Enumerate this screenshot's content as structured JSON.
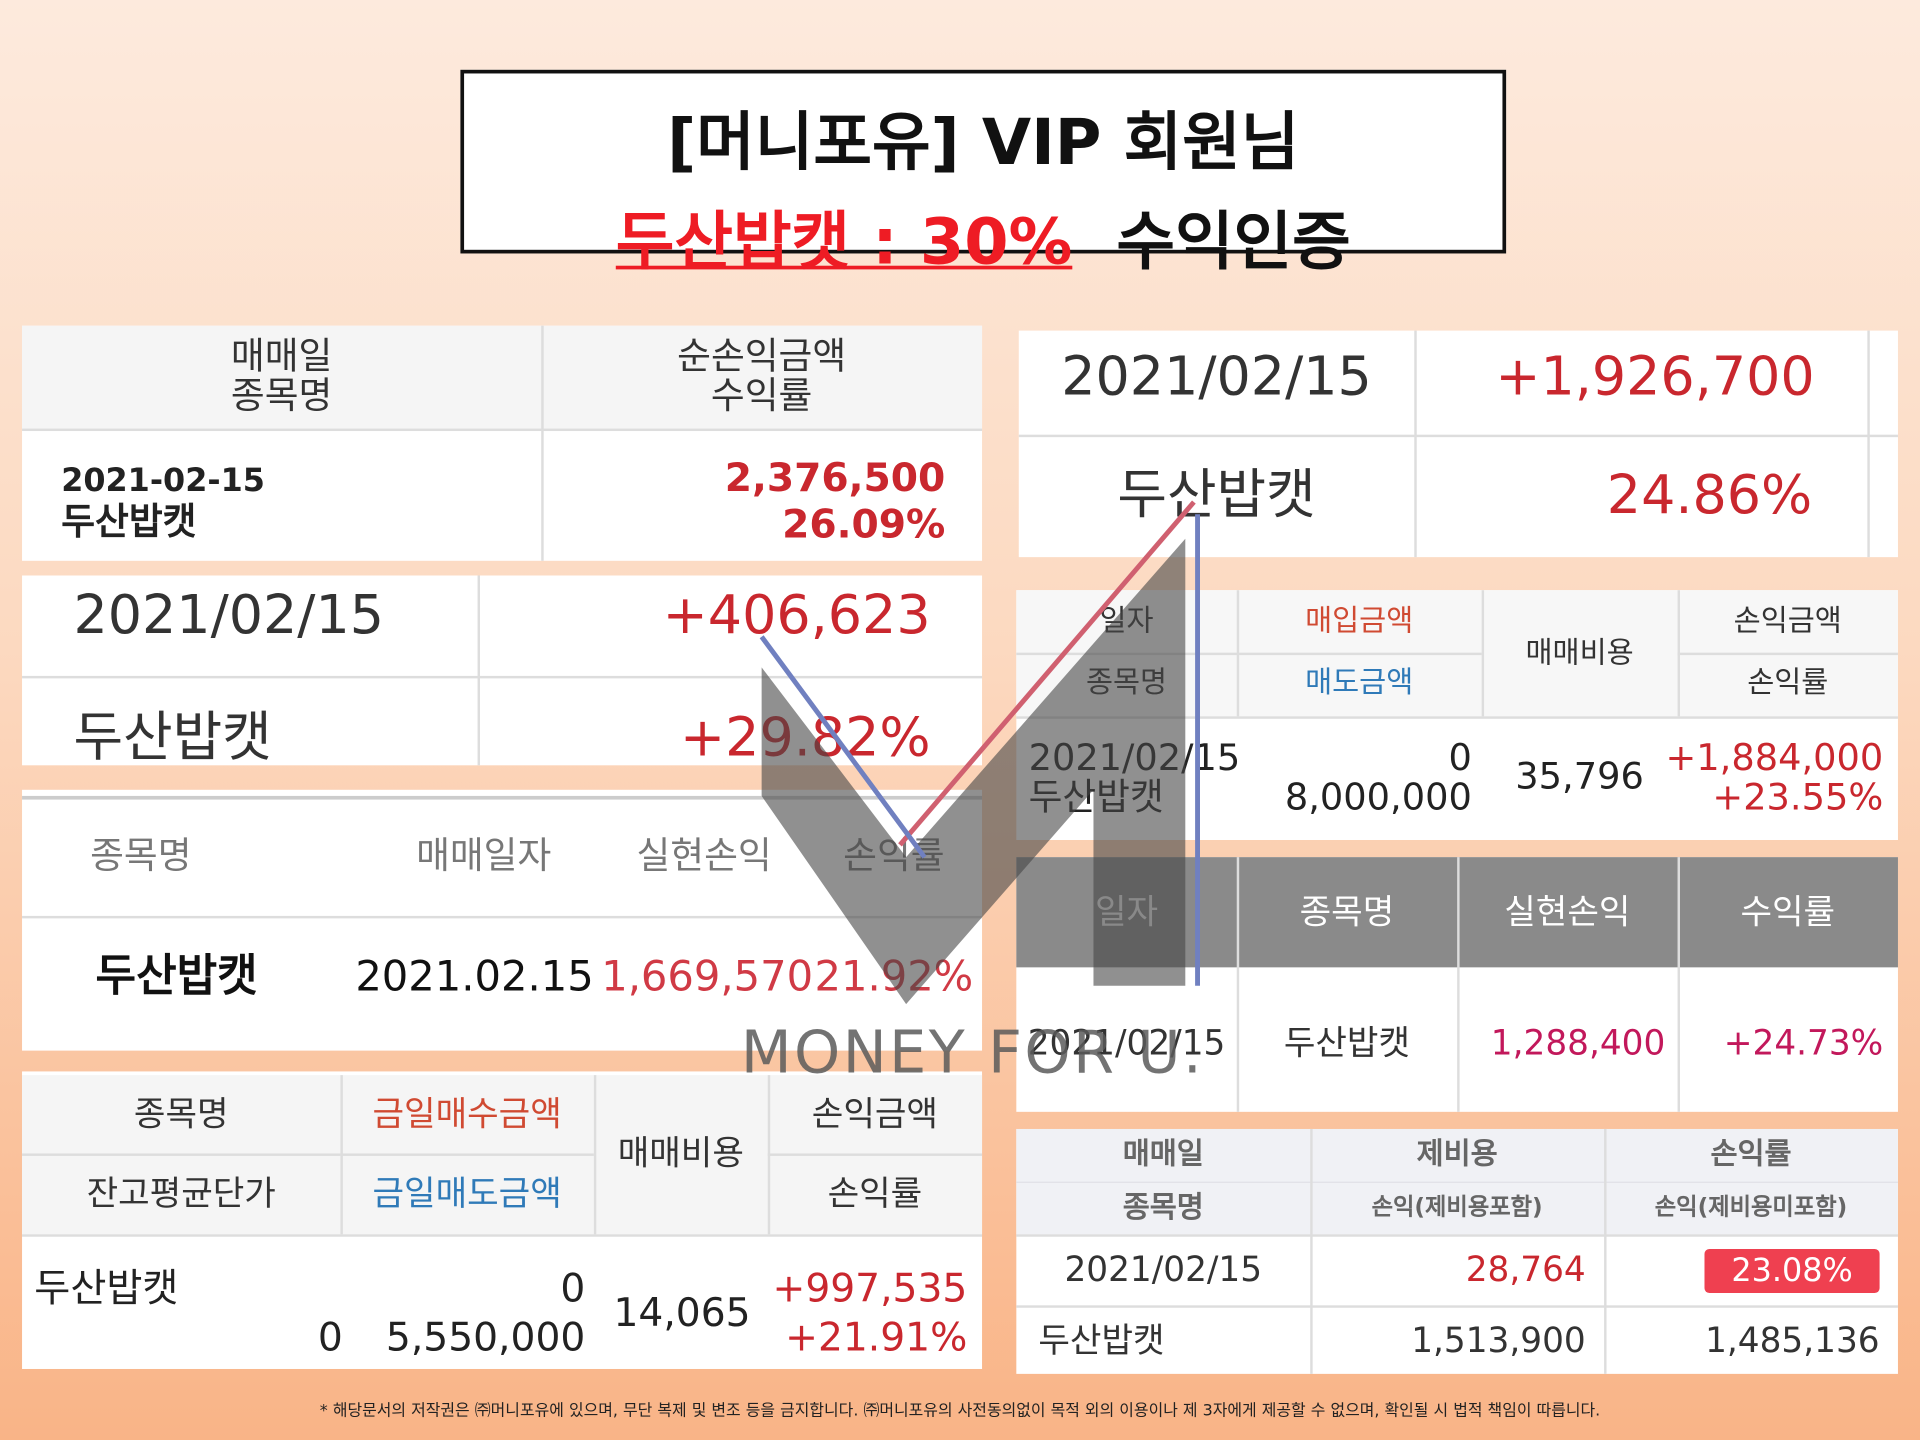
{
  "header": {
    "line1": "[머니포유] VIP 회원님",
    "highlight": "두산밥캣 : 30%",
    "line2_rest": "수익인증"
  },
  "panel1": {
    "headers": [
      "매매일",
      "종목명",
      "순손익금액",
      "수익률"
    ],
    "row": [
      "2021-02-15",
      "두산밥캣",
      "2,376,500",
      "26.09%"
    ]
  },
  "panel2": {
    "rows": [
      [
        "2021/02/15",
        "+406,623"
      ],
      [
        "두산밥캣",
        "+29.82%"
      ]
    ]
  },
  "panel3": {
    "headers": [
      "종목명",
      "매매일자",
      "실현손익",
      "손익률"
    ],
    "row": [
      "두산밥캣",
      "2021.02.15",
      "1,669,570",
      "21.92%"
    ]
  },
  "panel4": {
    "headers": [
      "종목명",
      "금일매수금액",
      "매매비용",
      "손익금액",
      "잔고평균단가",
      "금일매도금액",
      "손익률"
    ],
    "row": [
      "두산밥캣",
      "0",
      "0",
      "5,550,000",
      "14,065",
      "+997,535",
      "+21.91%"
    ]
  },
  "panel5": {
    "rows": [
      [
        "2021/02/15",
        "+1,926,700"
      ],
      [
        "두산밥캣",
        "24.86%"
      ]
    ]
  },
  "panel6": {
    "headers": [
      "일자",
      "매입금액",
      "매매비용",
      "손익금액",
      "종목명",
      "매도금액",
      "손익률"
    ],
    "row": [
      "2021/02/15",
      "두산밥캣",
      "0",
      "8,000,000",
      "35,796",
      "+1,884,000",
      "+23.55%"
    ]
  },
  "panel7": {
    "headers": [
      "일자",
      "종목명",
      "실현손익",
      "수익률"
    ],
    "row": [
      "2021/02/15",
      "두산밥캣",
      "1,288,400",
      "+24.73%"
    ]
  },
  "panel8": {
    "headers": [
      "매매일",
      "제비용",
      "손익률",
      "종목명",
      "손익(제비용포함)",
      "손익(제비용미포함)"
    ],
    "rows": [
      [
        "2021/02/15",
        "28,764",
        "23.08%"
      ],
      [
        "두산밥캣",
        "1,513,900",
        "1,485,136"
      ]
    ]
  },
  "watermark": "MONEY FOR U.",
  "footer": "* 해당문서의 저작권은 ㈜머니포유에 있으며, 무단 복제 및 변조 등을 금지합니다. ㈜머니포유의 사전동의없이 목적 외의 이용이나 제 3자에게 제공할 수 없으며, 확인될 시 법적 책임이 따릅니다."
}
